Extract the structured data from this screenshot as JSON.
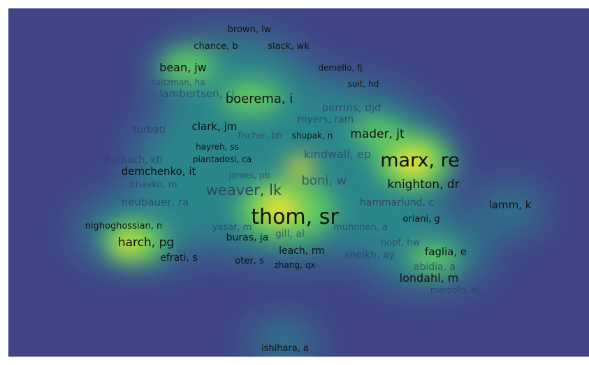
{
  "labels": [
    "brown, iw",
    "chance, b",
    "slack, wk",
    "bean, jw",
    "demello, fj",
    "suit, hd",
    "boerema, i",
    "lambertsen, cj",
    "saltzman, ha",
    "perrins, djd",
    "myers, ram",
    "clark, jm",
    "torbati",
    "mader, jt",
    "shupak, n",
    "fischer, bh",
    "hayreh, ss",
    "kindwall, ep",
    "marx, re",
    "holbach, kh",
    "piantadosi, ca",
    "demchenko, it",
    "james, pb",
    "boni, w",
    "chavko, m",
    "weaver, lk",
    "knighton, dr",
    "neubauer, ra",
    "hammarlund, c",
    "lamm, k",
    "thom, sr",
    "oriani, g",
    "nighoghossian, n",
    "yasar, m",
    "gill, al",
    "muhonen, a",
    "harch, pg",
    "buras, ja",
    "hopf, hw",
    "leach, rm",
    "sheikh, ay",
    "faglia, e",
    "efrati, s",
    "oter, s",
    "zhang, qx",
    "abidia, a",
    "londahl, m",
    "margolis, dj",
    "ishihara, a"
  ]
}
